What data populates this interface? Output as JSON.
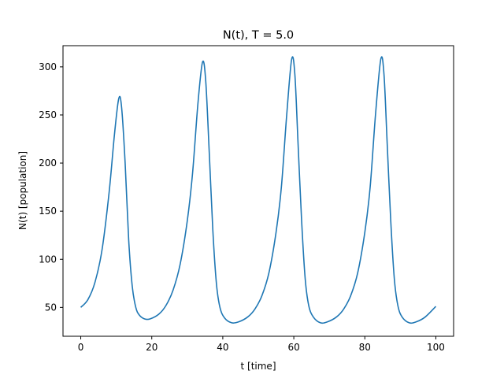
{
  "chart_data": {
    "type": "line",
    "title": "N(t), T = 5.0",
    "xlabel": "t [time]",
    "ylabel": "N(t) [population]",
    "xlim": [
      -5,
      105
    ],
    "ylim": [
      20,
      322
    ],
    "x_ticks": [
      0,
      20,
      40,
      60,
      80,
      100
    ],
    "y_ticks": [
      50,
      100,
      150,
      200,
      250,
      300
    ],
    "grid": false,
    "legend": "none",
    "series": [
      {
        "color": "#1f77b4",
        "points": [
          [
            0,
            50
          ],
          [
            2,
            58
          ],
          [
            4,
            76
          ],
          [
            6,
            110
          ],
          [
            8,
            170
          ],
          [
            9.5,
            230
          ],
          [
            10.7,
            267
          ],
          [
            11.5,
            258
          ],
          [
            12.5,
            200
          ],
          [
            13.5,
            120
          ],
          [
            14.5,
            72
          ],
          [
            15.5,
            50
          ],
          [
            16.5,
            42
          ],
          [
            18,
            38
          ],
          [
            19.5,
            38
          ],
          [
            22,
            43
          ],
          [
            24,
            52
          ],
          [
            26,
            68
          ],
          [
            28,
            95
          ],
          [
            30,
            140
          ],
          [
            31.5,
            190
          ],
          [
            33,
            262
          ],
          [
            34.3,
            305
          ],
          [
            35.2,
            285
          ],
          [
            36.2,
            210
          ],
          [
            37.2,
            130
          ],
          [
            38.2,
            75
          ],
          [
            39.2,
            50
          ],
          [
            40.5,
            39
          ],
          [
            42.5,
            34
          ],
          [
            44.5,
            35
          ],
          [
            47,
            40
          ],
          [
            49,
            48
          ],
          [
            51,
            62
          ],
          [
            53,
            86
          ],
          [
            55,
            128
          ],
          [
            56.5,
            175
          ],
          [
            58,
            250
          ],
          [
            59.4,
            308
          ],
          [
            60.3,
            292
          ],
          [
            61.2,
            220
          ],
          [
            62.2,
            140
          ],
          [
            63.2,
            80
          ],
          [
            64.2,
            52
          ],
          [
            65.5,
            40
          ],
          [
            67.5,
            34
          ],
          [
            69.5,
            35
          ],
          [
            72,
            40
          ],
          [
            74,
            48
          ],
          [
            76,
            62
          ],
          [
            78,
            86
          ],
          [
            80,
            128
          ],
          [
            81.5,
            175
          ],
          [
            83,
            250
          ],
          [
            84.5,
            308
          ],
          [
            85.4,
            292
          ],
          [
            86.3,
            220
          ],
          [
            87.3,
            140
          ],
          [
            88.3,
            80
          ],
          [
            89.3,
            52
          ],
          [
            90.5,
            40
          ],
          [
            92.5,
            34
          ],
          [
            94.5,
            35
          ],
          [
            97,
            40
          ],
          [
            100,
            51
          ]
        ]
      }
    ]
  }
}
